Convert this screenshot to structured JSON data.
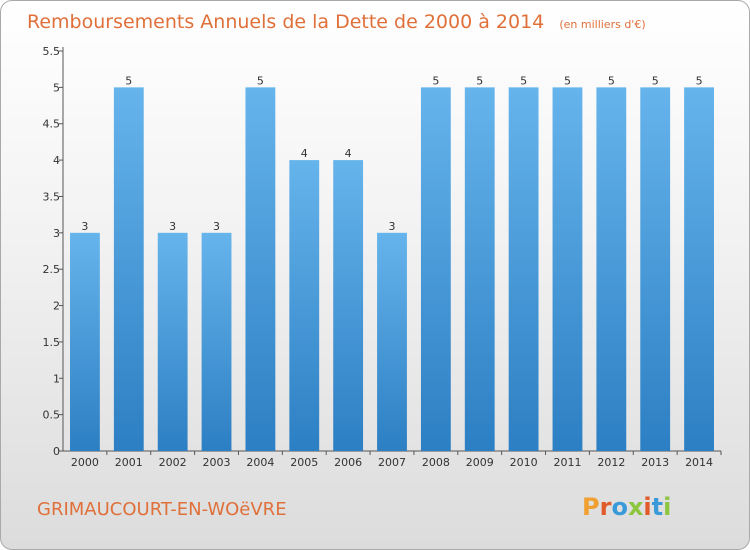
{
  "title": "Remboursements Annuels de la Dette de 2000 à 2014",
  "subtitle": "(en milliers d'€)",
  "commune": "GRIMAUCOURT-EN-WOëVRE",
  "logo": "Proxiti",
  "colors": {
    "title": "#e0703a",
    "bar_light": "#66b4ec",
    "bar_dark": "#2c7fc3",
    "logo_letters": [
      "#f0a030",
      "#e05a2a",
      "#3a9ad9",
      "#8cc63f",
      "#e05a2a",
      "#3a9ad9",
      "#8cc63f"
    ]
  },
  "chart_data": {
    "type": "bar",
    "title": "Remboursements Annuels de la Dette de 2000 à 2014",
    "subtitle": "(en milliers d'€)",
    "categories": [
      "2000",
      "2001",
      "2002",
      "2003",
      "2004",
      "2005",
      "2006",
      "2007",
      "2008",
      "2009",
      "2010",
      "2011",
      "2012",
      "2013",
      "2014"
    ],
    "values": [
      3,
      5,
      3,
      3,
      5,
      4,
      4,
      3,
      5,
      5,
      5,
      5,
      5,
      5,
      5
    ],
    "data_labels": [
      "3",
      "5",
      "3",
      "3",
      "5",
      "4",
      "4",
      "3",
      "5",
      "5",
      "5",
      "5",
      "5",
      "5",
      "5"
    ],
    "yticks": [
      0,
      0.5,
      1,
      1.5,
      2,
      2.5,
      3,
      3.5,
      4,
      4.5,
      5,
      5.5
    ],
    "ytick_labels": [
      "0",
      "0.5",
      "1",
      "1.5",
      "2",
      "2.5",
      "3",
      "3.5",
      "4",
      "4.5",
      "5",
      "5.5"
    ],
    "ylim": [
      0,
      5.5
    ],
    "grid": false,
    "legend": "none"
  }
}
